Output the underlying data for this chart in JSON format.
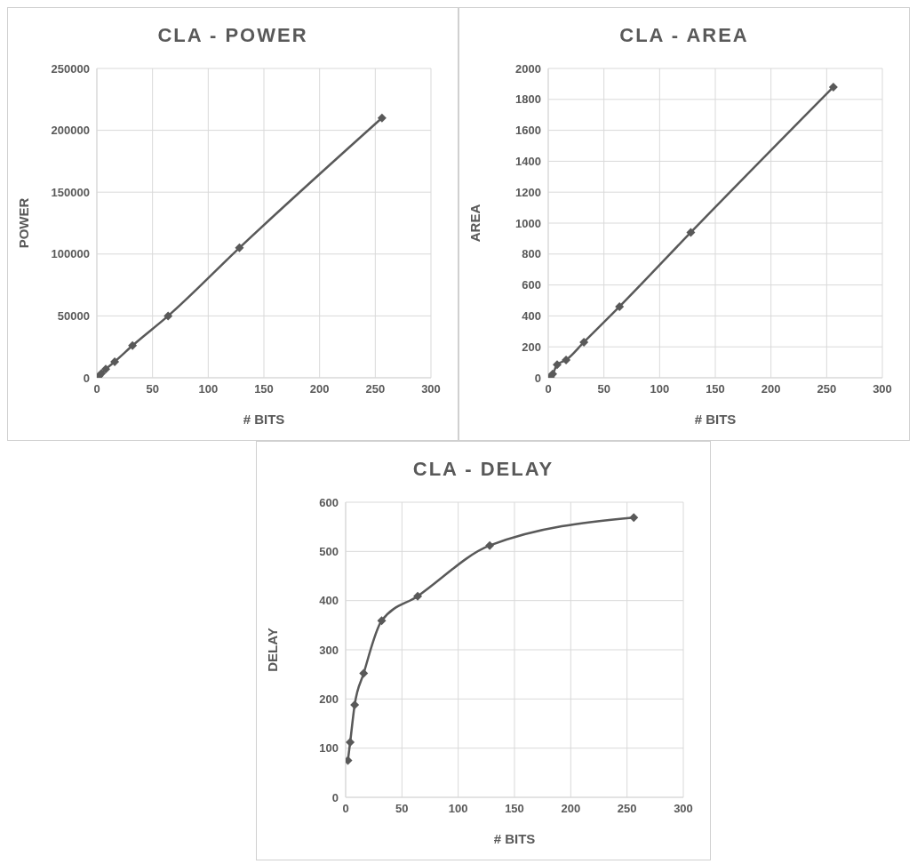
{
  "chart_data": [
    {
      "type": "line",
      "title": "CLA - POWER",
      "xlabel": "# BITS",
      "ylabel": "POWER",
      "x": [
        2,
        4,
        8,
        16,
        32,
        64,
        128,
        256
      ],
      "series": [
        {
          "color": "#595959",
          "values": [
            1500,
            3500,
            7000,
            13000,
            26000,
            50000,
            105000,
            210000
          ]
        }
      ],
      "xlim": [
        0,
        300
      ],
      "xticks": [
        0,
        50,
        100,
        150,
        200,
        250,
        300
      ],
      "ylim": [
        0,
        250000
      ],
      "yticks": [
        0,
        50000,
        100000,
        150000,
        200000,
        250000
      ],
      "grid": true,
      "marker": "diamond",
      "legend": false
    },
    {
      "type": "line",
      "title": "CLA - AREA",
      "xlabel": "# BITS",
      "ylabel": "AREA",
      "x": [
        2,
        4,
        8,
        16,
        32,
        64,
        128,
        256
      ],
      "series": [
        {
          "color": "#595959",
          "values": [
            6,
            24,
            85,
            115,
            230,
            460,
            940,
            1880
          ]
        }
      ],
      "xlim": [
        0,
        300
      ],
      "xticks": [
        0,
        50,
        100,
        150,
        200,
        250,
        300
      ],
      "ylim": [
        0,
        2000
      ],
      "yticks": [
        0,
        200,
        400,
        600,
        800,
        1000,
        1200,
        1400,
        1600,
        1800,
        2000
      ],
      "grid": true,
      "marker": "diamond",
      "legend": false
    },
    {
      "type": "line",
      "title": "CLA - DELAY",
      "xlabel": "# BITS",
      "ylabel": "DELAY",
      "x": [
        2,
        4,
        8,
        16,
        32,
        64,
        128,
        256
      ],
      "series": [
        {
          "color": "#595959",
          "values": [
            75,
            112,
            188,
            252,
            359,
            409,
            512,
            569
          ]
        }
      ],
      "xlim": [
        0,
        300
      ],
      "xticks": [
        0,
        50,
        100,
        150,
        200,
        250,
        300
      ],
      "ylim": [
        0,
        600
      ],
      "yticks": [
        0,
        100,
        200,
        300,
        400,
        500,
        600
      ],
      "grid": true,
      "marker": "diamond",
      "legend": false
    }
  ]
}
